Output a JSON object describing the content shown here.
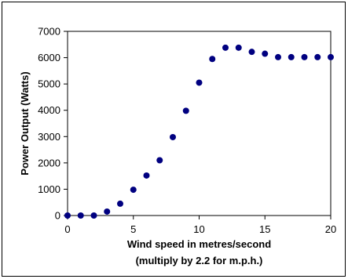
{
  "chart_data": {
    "type": "scatter",
    "title": "",
    "xlabel": "Wind speed in metres/second",
    "xlabel_line2": "(multiply by 2.2 for m.p.h.)",
    "ylabel": "Power Output (Watts)",
    "xlim": [
      0,
      20
    ],
    "ylim": [
      0,
      7000
    ],
    "xticks": [
      0,
      5,
      10,
      15,
      20
    ],
    "yticks": [
      0,
      1000,
      2000,
      3000,
      4000,
      5000,
      6000,
      7000
    ],
    "grid": false,
    "legend": "none",
    "marker_color": "#000080",
    "series": [
      {
        "x": [
          0,
          1,
          2,
          3,
          4,
          5,
          6,
          7,
          8,
          9,
          10,
          11,
          12,
          13,
          14,
          15,
          16,
          17,
          18,
          19,
          20
        ],
        "y": [
          0,
          0,
          0,
          150,
          450,
          980,
          1520,
          2100,
          2980,
          3980,
          5050,
          5950,
          6380,
          6380,
          6220,
          6150,
          6020,
          6020,
          6020,
          6020,
          6020
        ]
      }
    ]
  }
}
